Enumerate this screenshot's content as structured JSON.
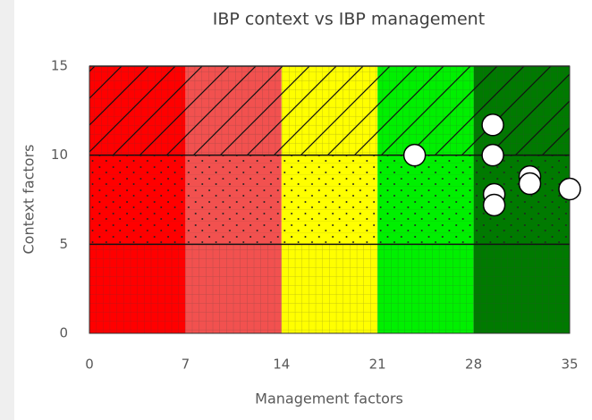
{
  "chart_data": {
    "type": "scatter",
    "title": "IBP context vs IBP management",
    "x_label": "Management factors",
    "y_label": "Context factors",
    "xlim": [
      0,
      35
    ],
    "xticks": [
      0,
      7,
      14,
      21,
      28,
      35
    ],
    "ylim": [
      0,
      15
    ],
    "yticks": [
      0,
      5,
      10,
      15
    ],
    "x_zones": [
      {
        "from": 0,
        "to": 7,
        "color": "#ff0000"
      },
      {
        "from": 7,
        "to": 14,
        "color": "#f2514f"
      },
      {
        "from": 14,
        "to": 21,
        "color": "#ffff00"
      },
      {
        "from": 21,
        "to": 28,
        "color": "#00f000"
      },
      {
        "from": 28,
        "to": 35,
        "color": "#007a00"
      }
    ],
    "y_zones": [
      {
        "from": 0,
        "to": 5,
        "pattern": "grid"
      },
      {
        "from": 5,
        "to": 10,
        "pattern": "dots"
      },
      {
        "from": 10,
        "to": 15,
        "pattern": "diagonal"
      }
    ],
    "series": [
      {
        "color": "#ffffff",
        "x": [
          23.7,
          29.4,
          29.4,
          29.5,
          29.5,
          32.1,
          32.1,
          35
        ],
        "values": [
          10,
          11.7,
          10,
          7.8,
          7.2,
          8.8,
          8.4,
          8.1
        ]
      }
    ]
  }
}
